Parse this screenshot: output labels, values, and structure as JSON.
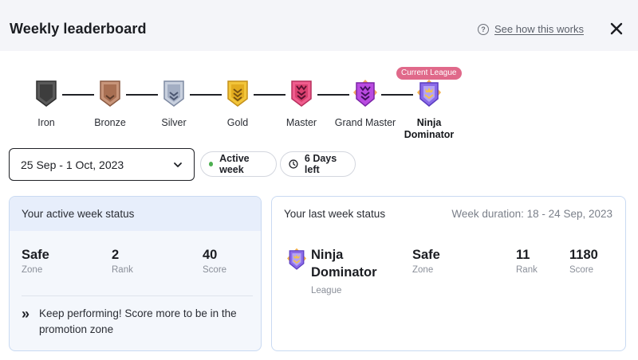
{
  "header": {
    "title": "Weekly leaderboard",
    "help_link": "See how this works",
    "help_icon": "question-circle-icon",
    "close_icon": "close-icon"
  },
  "leagues": {
    "current_label": "Current League",
    "items": [
      {
        "name": "Iron",
        "color": "#4a4a4a"
      },
      {
        "name": "Bronze",
        "color": "#b07a5c"
      },
      {
        "name": "Silver",
        "color": "#8f9bb3"
      },
      {
        "name": "Gold",
        "color": "#e8b41e"
      },
      {
        "name": "Master",
        "color": "#e0457a"
      },
      {
        "name": "Grand Master",
        "color": "#a13ad0"
      },
      {
        "name": "Ninja Dominator",
        "color": "#7b5ae0"
      }
    ],
    "current_index": 6
  },
  "week_select": {
    "value": "25 Sep - 1 Oct, 2023"
  },
  "chips": {
    "active": "Active week",
    "days_left": "6 Days left"
  },
  "active_card": {
    "title": "Your active week status",
    "stats": [
      {
        "value": "Safe",
        "label": "Zone"
      },
      {
        "value": "2",
        "label": "Rank"
      },
      {
        "value": "40",
        "label": "Score"
      }
    ],
    "tip": "Keep performing! Score more to be in the promotion zone"
  },
  "last_card": {
    "title": "Your last week status",
    "duration": "Week duration: 18 - 24 Sep, 2023",
    "league_name": "Ninja Dominator",
    "league_label": "League",
    "stats": [
      {
        "value": "Safe",
        "label": "Zone"
      },
      {
        "value": "11",
        "label": "Rank"
      },
      {
        "value": "1180",
        "label": "Score"
      }
    ]
  },
  "colors": {
    "accent_pink": "#e0698a",
    "active_dot": "#4caf50",
    "card_border": "#c9daf2"
  }
}
